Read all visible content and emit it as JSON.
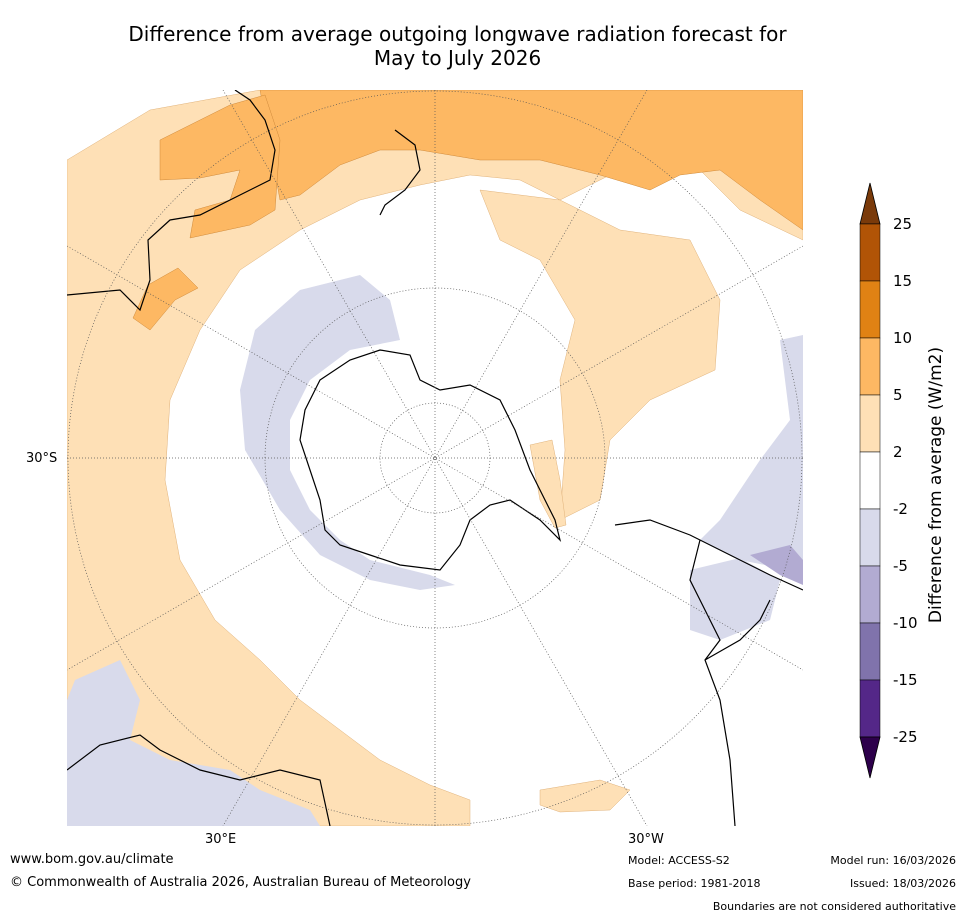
{
  "title_line1": "Difference from average outgoing longwave radiation forecast for",
  "title_line2": "May to July 2026",
  "map": {
    "projection": "south-polar-stereographic",
    "lat_labels": [
      "30°S"
    ],
    "lon_labels": [
      "30°E",
      "30°W"
    ]
  },
  "colorbar": {
    "title": "Difference from average (W/m2)",
    "ticks": [
      "25",
      "15",
      "10",
      "5",
      "2",
      "-2",
      "-5",
      "-10",
      "-15",
      "-25"
    ],
    "colors": {
      "over": "#7a3a0a",
      "15_25": "#b15406",
      "10_15": "#e08214",
      "5_10": "#fdb863",
      "2_5": "#fee0b6",
      "m2_2": "#ffffff",
      "m5_m2": "#d8daeb",
      "m10_m5": "#b2abd2",
      "m15_m10": "#8073ac",
      "m25_m15": "#542788",
      "under": "#2d004b"
    }
  },
  "footer": {
    "website": "www.bom.gov.au/climate",
    "copyright": "© Commonwealth of Australia 2026, Australian Bureau of Meteorology",
    "model": "Model: ACCESS-S2",
    "base_period": "Base period: 1981-2018",
    "model_run": "Model run: 16/03/2026",
    "issued": "Issued: 18/03/2026",
    "disclaimer": "Boundaries are not considered authoritative"
  }
}
